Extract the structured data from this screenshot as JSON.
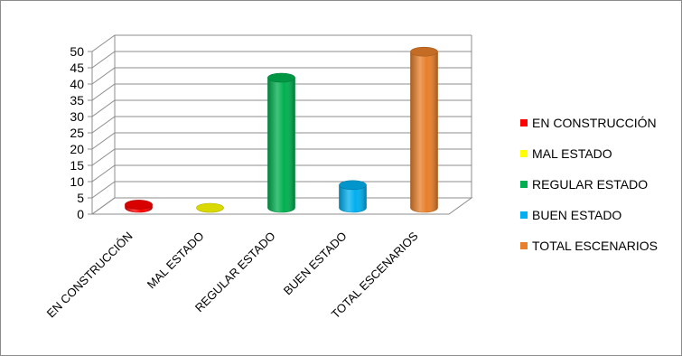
{
  "chart_data": {
    "type": "bar",
    "categories": [
      "EN CONSTRUCCIÓN",
      "MAL ESTADO",
      "REGULAR ESTADO",
      "BUEN ESTADO",
      "TOTAL ESCENARIOS"
    ],
    "values": [
      1,
      0,
      40,
      7,
      48
    ],
    "colors": [
      "#ff0000",
      "#ffff00",
      "#00b050",
      "#00b0f0",
      "#e87f2a"
    ],
    "y_ticks": [
      "0",
      "5",
      "10",
      "15",
      "20",
      "25",
      "30",
      "35",
      "40",
      "45",
      "50"
    ],
    "ylim": [
      0,
      50
    ],
    "grid": true,
    "legend_position": "right",
    "legend": [
      {
        "label": "EN CONSTRUCCIÓN",
        "color": "#ff0000"
      },
      {
        "label": "MAL ESTADO",
        "color": "#ffff00"
      },
      {
        "label": "REGULAR ESTADO",
        "color": "#00b050"
      },
      {
        "label": "BUEN ESTADO",
        "color": "#00b0f0"
      },
      {
        "label": "TOTAL ESCENARIOS",
        "color": "#e87f2a"
      }
    ]
  }
}
